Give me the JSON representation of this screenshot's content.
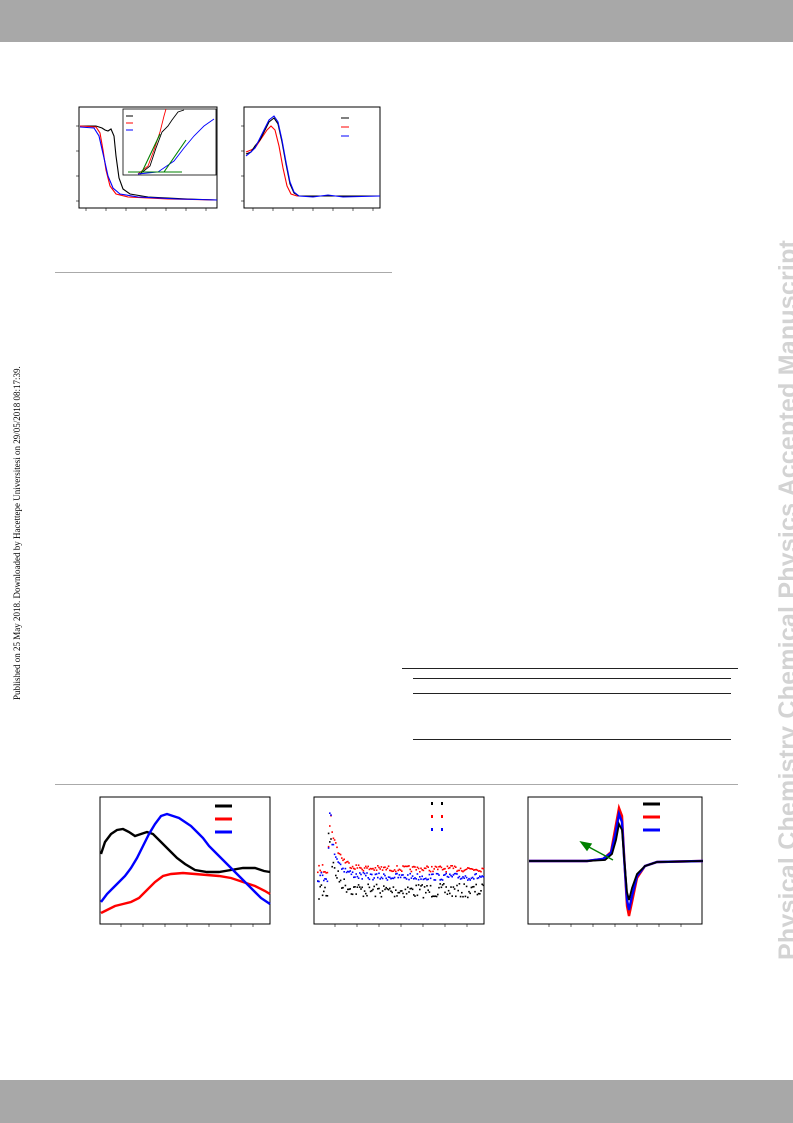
{
  "side_note": "Published on 25 May 2018. Downloaded by Hacettepe Universitesi on 29/05/2018 08:17:39.",
  "watermark": "Physical Chemistry Chemical Physics Accepted Manuscript",
  "colors": {
    "series": [
      "#000000",
      "#ff0000",
      "#0000ff"
    ],
    "fit": "#008000",
    "bars": "#a8a8a8",
    "watermark": "#d3d3d3",
    "rule": "#aaaaaa"
  }
}
